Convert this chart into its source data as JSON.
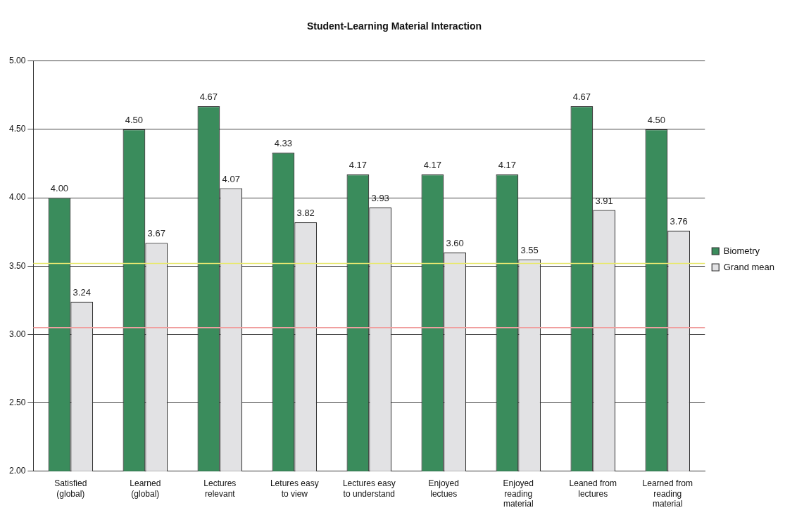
{
  "chart_data": {
    "type": "bar",
    "title": "Student-Learning Material Interaction",
    "categories": [
      "Satisfied (global)",
      "Learned (global)",
      "Lectures relevant",
      "Letures easy to view",
      "Lectures easy to understand",
      "Enjoyed lectues",
      "Enjoyed reading material",
      "Leaned from lectures",
      "Learned from reading material"
    ],
    "series": [
      {
        "name": "Biometry",
        "color": "#3a8c5c",
        "values": [
          4.0,
          4.5,
          4.67,
          4.33,
          4.17,
          4.17,
          4.17,
          4.67,
          4.5
        ],
        "value_labels": [
          "4.00",
          "4.50",
          "4.67",
          "4.33",
          "4.17",
          "4.17",
          "4.17",
          "4.67",
          "4.50"
        ]
      },
      {
        "name": "Grand mean",
        "color": "#e2e2e4",
        "values": [
          3.24,
          3.67,
          4.07,
          3.82,
          3.93,
          3.6,
          3.55,
          3.91,
          3.76
        ],
        "value_labels": [
          "3.24",
          "3.67",
          "4.07",
          "3.82",
          "3.93",
          "3.60",
          "3.55",
          "3.91",
          "3.76"
        ]
      }
    ],
    "ylim": [
      2,
      5
    ],
    "yticks": [
      {
        "value": 2,
        "label": "2.00"
      },
      {
        "value": 2.5,
        "label": "2.50"
      },
      {
        "value": 3,
        "label": "3.00"
      },
      {
        "value": 3.5,
        "label": "3.50"
      },
      {
        "value": 4,
        "label": "4.00"
      },
      {
        "value": 4.5,
        "label": "4.50"
      },
      {
        "value": 5,
        "label": "5.00"
      }
    ],
    "ref_lines": [
      {
        "axis": "y",
        "value": 3.52,
        "color": "#e8e870"
      },
      {
        "axis": "y",
        "value": 3.05,
        "color": "#f0a0a0"
      }
    ],
    "grid": "y",
    "legend": "right"
  }
}
